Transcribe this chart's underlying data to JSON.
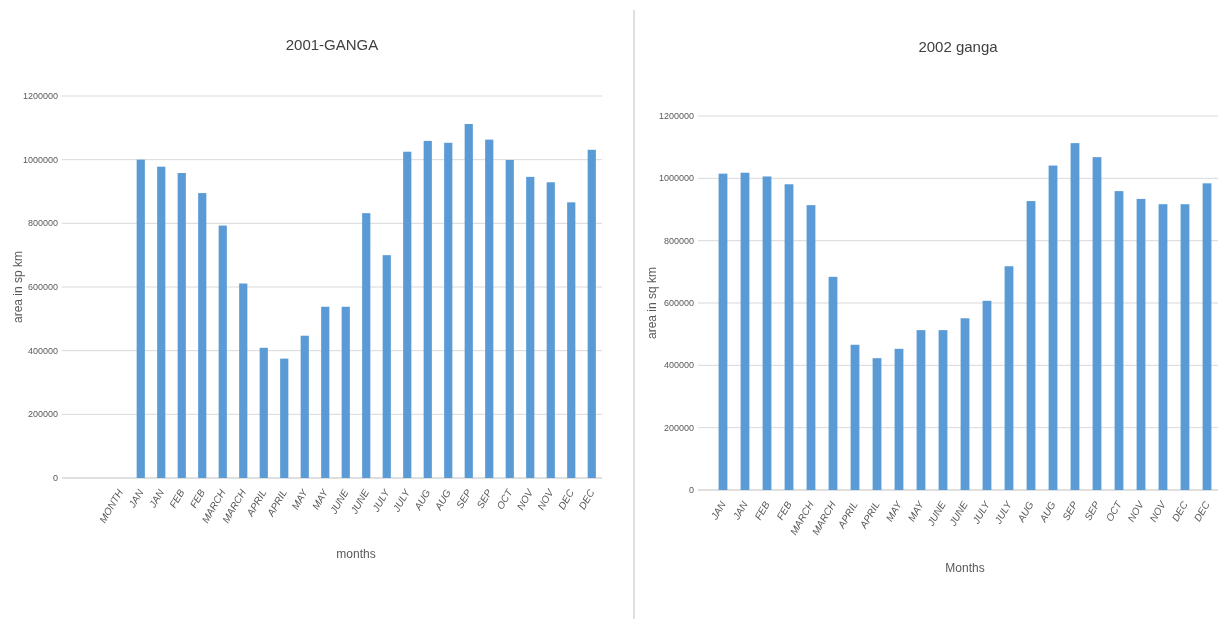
{
  "chart_data": [
    {
      "type": "bar",
      "title": "2001-GANGA",
      "xlabel": "months",
      "ylabel": "area in sp km",
      "categories": [
        "MONTH",
        "JAN",
        "JAN",
        "FEB",
        "FEB",
        "MARCH",
        "MARCH",
        "APRIL",
        "APRIL",
        "MAY",
        "MAY",
        "JUNE",
        "JUNE",
        "JULY",
        "JULY",
        "AUG",
        "AUG",
        "SEP",
        "SEP",
        "OCT",
        "NOV",
        "NOV",
        "DEC",
        "DEC"
      ],
      "series": [
        {
          "color": "#5b9bd5",
          "values": [
            null,
            1000000,
            978000,
            958000,
            895000,
            793000,
            611000,
            409000,
            375000,
            447000,
            538000,
            538000,
            832000,
            700000,
            1025000,
            1059000,
            1053000,
            1112000,
            1063000,
            999000,
            946000,
            929000,
            866000,
            1031000
          ]
        }
      ],
      "ylim": [
        0,
        1200000
      ],
      "yticks": [
        0,
        200000,
        400000,
        600000,
        800000,
        1000000,
        1200000
      ],
      "grid": "y"
    },
    {
      "type": "bar",
      "title": "2002 ganga",
      "xlabel": "Months",
      "ylabel": "area in sq km",
      "categories": [
        "JAN",
        "JAN",
        "FEB",
        "FEB",
        "MARCH",
        "MARCH",
        "APRIL",
        "APRIL",
        "MAY",
        "MAY",
        "JUNE",
        "JUNE",
        "JULY",
        "JULY",
        "AUG",
        "AUG",
        "SEP",
        "SEP",
        "OCT",
        "NOV",
        "NOV",
        "DEC",
        "DEC"
      ],
      "series": [
        {
          "color": "#5b9bd5",
          "values": [
            1015000,
            1018000,
            1006000,
            981000,
            914000,
            684000,
            466000,
            423000,
            453000,
            513000,
            513000,
            551000,
            607000,
            718000,
            927000,
            1041000,
            1113000,
            1068000,
            959000,
            934000,
            917000,
            917000,
            984000
          ]
        }
      ],
      "ylim": [
        0,
        1200000
      ],
      "yticks": [
        0,
        200000,
        400000,
        600000,
        800000,
        1000000,
        1200000
      ],
      "grid": "y"
    }
  ]
}
